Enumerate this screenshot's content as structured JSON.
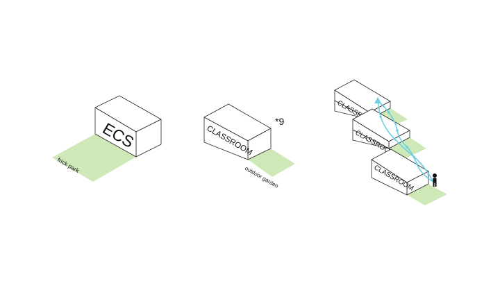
{
  "panels": {
    "ecs": {
      "box_label": "ECS",
      "ground_label": "frick park"
    },
    "classroom": {
      "box_label": "CLASSROOM",
      "multiplier": "*9",
      "ground_label": "outdoor garden"
    },
    "stacked": {
      "box_labels": [
        "CLASSROOM",
        "CLASSROOM",
        "CLASSROOM"
      ]
    }
  },
  "colors": {
    "lawn": "#cfe8b8",
    "circulation": "#6ccfe0",
    "line": "#222222"
  }
}
